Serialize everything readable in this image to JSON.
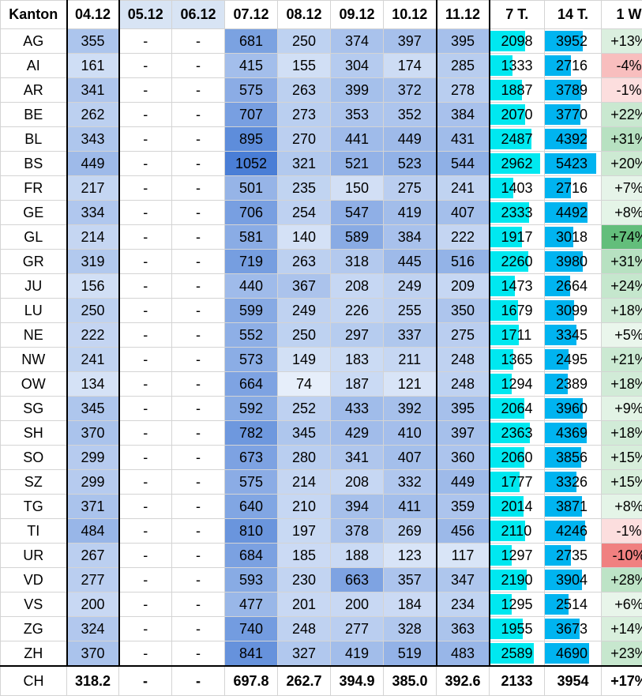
{
  "headers": [
    "Kanton",
    "04.12",
    "05.12",
    "06.12",
    "07.12",
    "08.12",
    "09.12",
    "10.12",
    "11.12",
    "7 T.",
    "14 T.",
    "1 W"
  ],
  "rows": [
    {
      "kanton": "AG",
      "d": [
        "355",
        "-",
        "-",
        "681",
        "250",
        "374",
        "397",
        "395"
      ],
      "t7": "2098",
      "t14": "3952",
      "w": "+13%"
    },
    {
      "kanton": "AI",
      "d": [
        "161",
        "-",
        "-",
        "415",
        "155",
        "304",
        "174",
        "285"
      ],
      "t7": "1333",
      "t14": "2716",
      "w": "-4%"
    },
    {
      "kanton": "AR",
      "d": [
        "341",
        "-",
        "-",
        "575",
        "263",
        "399",
        "372",
        "278"
      ],
      "t7": "1887",
      "t14": "3789",
      "w": "-1%"
    },
    {
      "kanton": "BE",
      "d": [
        "262",
        "-",
        "-",
        "707",
        "273",
        "353",
        "352",
        "384"
      ],
      "t7": "2070",
      "t14": "3770",
      "w": "+22%"
    },
    {
      "kanton": "BL",
      "d": [
        "343",
        "-",
        "-",
        "895",
        "270",
        "441",
        "449",
        "431"
      ],
      "t7": "2487",
      "t14": "4392",
      "w": "+31%"
    },
    {
      "kanton": "BS",
      "d": [
        "449",
        "-",
        "-",
        "1052",
        "321",
        "521",
        "523",
        "544"
      ],
      "t7": "2962",
      "t14": "5423",
      "w": "+20%"
    },
    {
      "kanton": "FR",
      "d": [
        "217",
        "-",
        "-",
        "501",
        "235",
        "150",
        "275",
        "241"
      ],
      "t7": "1403",
      "t14": "2716",
      "w": "+7%"
    },
    {
      "kanton": "GE",
      "d": [
        "334",
        "-",
        "-",
        "706",
        "254",
        "547",
        "419",
        "407"
      ],
      "t7": "2333",
      "t14": "4492",
      "w": "+8%"
    },
    {
      "kanton": "GL",
      "d": [
        "214",
        "-",
        "-",
        "581",
        "140",
        "589",
        "384",
        "222"
      ],
      "t7": "1917",
      "t14": "3018",
      "w": "+74%"
    },
    {
      "kanton": "GR",
      "d": [
        "319",
        "-",
        "-",
        "719",
        "263",
        "318",
        "445",
        "516"
      ],
      "t7": "2260",
      "t14": "3980",
      "w": "+31%"
    },
    {
      "kanton": "JU",
      "d": [
        "156",
        "-",
        "-",
        "440",
        "367",
        "208",
        "249",
        "209"
      ],
      "t7": "1473",
      "t14": "2664",
      "w": "+24%"
    },
    {
      "kanton": "LU",
      "d": [
        "250",
        "-",
        "-",
        "599",
        "249",
        "226",
        "255",
        "350"
      ],
      "t7": "1679",
      "t14": "3099",
      "w": "+18%"
    },
    {
      "kanton": "NE",
      "d": [
        "222",
        "-",
        "-",
        "552",
        "250",
        "297",
        "337",
        "275"
      ],
      "t7": "1711",
      "t14": "3345",
      "w": "+5%"
    },
    {
      "kanton": "NW",
      "d": [
        "241",
        "-",
        "-",
        "573",
        "149",
        "183",
        "211",
        "248"
      ],
      "t7": "1365",
      "t14": "2495",
      "w": "+21%"
    },
    {
      "kanton": "OW",
      "d": [
        "134",
        "-",
        "-",
        "664",
        "74",
        "187",
        "121",
        "248"
      ],
      "t7": "1294",
      "t14": "2389",
      "w": "+18%"
    },
    {
      "kanton": "SG",
      "d": [
        "345",
        "-",
        "-",
        "592",
        "252",
        "433",
        "392",
        "395"
      ],
      "t7": "2064",
      "t14": "3960",
      "w": "+9%"
    },
    {
      "kanton": "SH",
      "d": [
        "370",
        "-",
        "-",
        "782",
        "345",
        "429",
        "410",
        "397"
      ],
      "t7": "2363",
      "t14": "4369",
      "w": "+18%"
    },
    {
      "kanton": "SO",
      "d": [
        "299",
        "-",
        "-",
        "673",
        "280",
        "341",
        "407",
        "360"
      ],
      "t7": "2060",
      "t14": "3856",
      "w": "+15%"
    },
    {
      "kanton": "SZ",
      "d": [
        "299",
        "-",
        "-",
        "575",
        "214",
        "208",
        "332",
        "449"
      ],
      "t7": "1777",
      "t14": "3326",
      "w": "+15%"
    },
    {
      "kanton": "TG",
      "d": [
        "371",
        "-",
        "-",
        "640",
        "210",
        "394",
        "411",
        "359"
      ],
      "t7": "2014",
      "t14": "3871",
      "w": "+8%"
    },
    {
      "kanton": "TI",
      "d": [
        "484",
        "-",
        "-",
        "810",
        "197",
        "378",
        "269",
        "456"
      ],
      "t7": "2110",
      "t14": "4246",
      "w": "-1%"
    },
    {
      "kanton": "UR",
      "d": [
        "267",
        "-",
        "-",
        "684",
        "185",
        "188",
        "123",
        "117"
      ],
      "t7": "1297",
      "t14": "2735",
      "w": "-10%"
    },
    {
      "kanton": "VD",
      "d": [
        "277",
        "-",
        "-",
        "593",
        "230",
        "663",
        "357",
        "347"
      ],
      "t7": "2190",
      "t14": "3904",
      "w": "+28%"
    },
    {
      "kanton": "VS",
      "d": [
        "200",
        "-",
        "-",
        "477",
        "201",
        "200",
        "184",
        "234"
      ],
      "t7": "1295",
      "t14": "2514",
      "w": "+6%"
    },
    {
      "kanton": "ZG",
      "d": [
        "324",
        "-",
        "-",
        "740",
        "248",
        "277",
        "328",
        "363"
      ],
      "t7": "1955",
      "t14": "3673",
      "w": "+14%"
    },
    {
      "kanton": "ZH",
      "d": [
        "370",
        "-",
        "-",
        "841",
        "327",
        "419",
        "519",
        "483"
      ],
      "t7": "2589",
      "t14": "4690",
      "w": "+23%"
    }
  ],
  "total": {
    "kanton": "CH",
    "d": [
      "318.2",
      "-",
      "-",
      "697.8",
      "262.7",
      "394.9",
      "385.0",
      "392.6"
    ],
    "t7": "2133",
    "t14": "3954",
    "w": "+17%"
  },
  "colors": {
    "heat_low": "#e6eefa",
    "heat_high": "#4a7ed6",
    "bar_7t": "#00e8f0",
    "bar_14t": "#00b4f0",
    "pos_low": "#f4faf4",
    "pos_high": "#63be7b",
    "neg_low": "#fde8e8",
    "neg_high": "#f08080",
    "highlight_border": "#000000"
  }
}
